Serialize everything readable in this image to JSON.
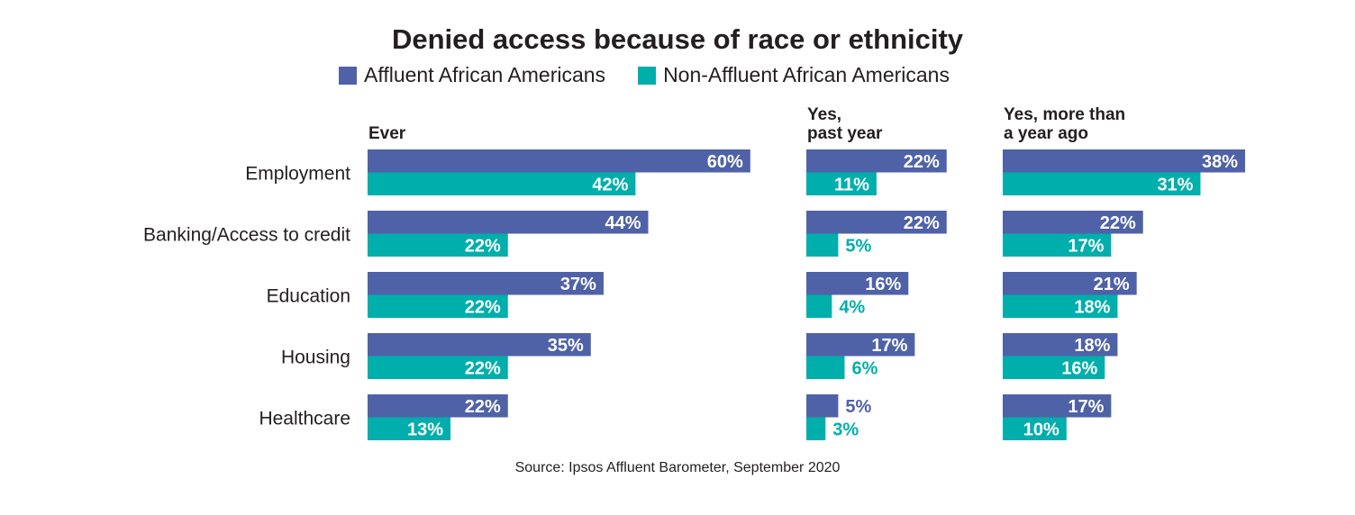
{
  "chart_data": {
    "type": "bar",
    "orientation": "horizontal",
    "title": "Denied access because of race or ethnicity",
    "source": "Source: Ipsos Affluent Barometer, September 2020",
    "categories": [
      "Employment",
      "Banking/Access to credit",
      "Education",
      "Housing",
      "Healthcare"
    ],
    "legend": {
      "placement": "top",
      "entries": [
        "Affluent African Americans",
        "Non-Affluent African Americans"
      ]
    },
    "colors": {
      "Affluent African Americans": "#4f62a8",
      "Non-Affluent African Americans": "#00aeac"
    },
    "unit": "%",
    "panels": [
      {
        "header": [
          "Ever"
        ],
        "series": [
          {
            "name": "Affluent African Americans",
            "values": [
              60,
              44,
              37,
              35,
              22
            ]
          },
          {
            "name": "Non-Affluent African Americans",
            "values": [
              42,
              22,
              22,
              22,
              13
            ]
          }
        ]
      },
      {
        "header": [
          "Yes,",
          "past year"
        ],
        "series": [
          {
            "name": "Affluent African Americans",
            "values": [
              22,
              22,
              16,
              17,
              5
            ]
          },
          {
            "name": "Non-Affluent African Americans",
            "values": [
              11,
              5,
              4,
              6,
              3
            ]
          }
        ]
      },
      {
        "header": [
          "Yes, more than",
          "a year ago"
        ],
        "series": [
          {
            "name": "Affluent African Americans",
            "values": [
              38,
              22,
              21,
              18,
              17
            ]
          },
          {
            "name": "Non-Affluent African Americans",
            "values": [
              31,
              17,
              18,
              16,
              10
            ]
          }
        ]
      }
    ]
  }
}
